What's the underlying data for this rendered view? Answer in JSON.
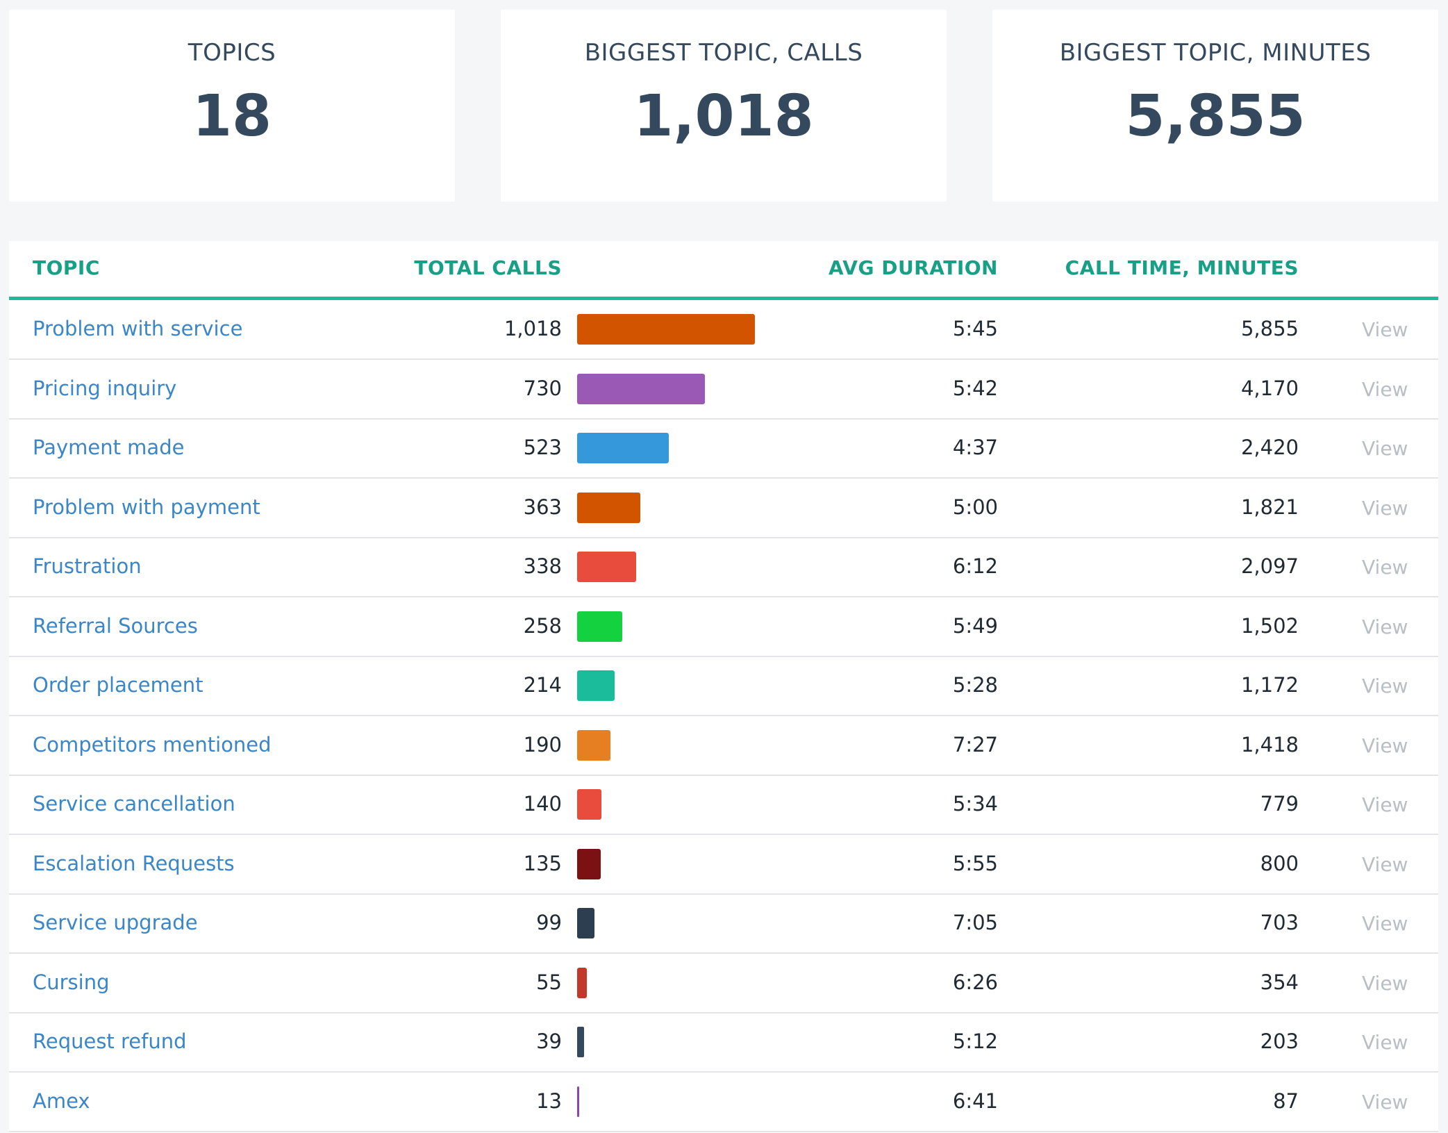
{
  "kpis": [
    {
      "label": "TOPICS",
      "value": "18"
    },
    {
      "label": "BIGGEST TOPIC, CALLS",
      "value": "1,018"
    },
    {
      "label": "BIGGEST TOPIC, MINUTES",
      "value": "5,855"
    }
  ],
  "table": {
    "headers": {
      "topic": "TOPIC",
      "total_calls": "TOTAL CALLS",
      "avg_duration": "AVG DURATION",
      "call_time": "CALL TIME, MINUTES"
    },
    "view_label": "View",
    "max_calls": 1018,
    "rows": [
      {
        "topic": "Problem with service",
        "calls": 1018,
        "calls_text": "1,018",
        "avg": "5:45",
        "minutes": "5,855",
        "color": "#d35400"
      },
      {
        "topic": "Pricing inquiry",
        "calls": 730,
        "calls_text": "730",
        "avg": "5:42",
        "minutes": "4,170",
        "color": "#9b59b6"
      },
      {
        "topic": "Payment made",
        "calls": 523,
        "calls_text": "523",
        "avg": "4:37",
        "minutes": "2,420",
        "color": "#3498db"
      },
      {
        "topic": "Problem with payment",
        "calls": 363,
        "calls_text": "363",
        "avg": "5:00",
        "minutes": "1,821",
        "color": "#d35400"
      },
      {
        "topic": "Frustration",
        "calls": 338,
        "calls_text": "338",
        "avg": "6:12",
        "minutes": "2,097",
        "color": "#e74c3c"
      },
      {
        "topic": "Referral Sources",
        "calls": 258,
        "calls_text": "258",
        "avg": "5:49",
        "minutes": "1,502",
        "color": "#13d13f"
      },
      {
        "topic": "Order placement",
        "calls": 214,
        "calls_text": "214",
        "avg": "5:28",
        "minutes": "1,172",
        "color": "#1abc9c"
      },
      {
        "topic": "Competitors mentioned",
        "calls": 190,
        "calls_text": "190",
        "avg": "7:27",
        "minutes": "1,418",
        "color": "#e67e22"
      },
      {
        "topic": "Service cancellation",
        "calls": 140,
        "calls_text": "140",
        "avg": "5:34",
        "minutes": "779",
        "color": "#e74c3c"
      },
      {
        "topic": "Escalation Requests",
        "calls": 135,
        "calls_text": "135",
        "avg": "5:55",
        "minutes": "800",
        "color": "#7b1113"
      },
      {
        "topic": "Service upgrade",
        "calls": 99,
        "calls_text": "99",
        "avg": "7:05",
        "minutes": "703",
        "color": "#2c3e50"
      },
      {
        "topic": "Cursing",
        "calls": 55,
        "calls_text": "55",
        "avg": "6:26",
        "minutes": "354",
        "color": "#c0392b"
      },
      {
        "topic": "Request refund",
        "calls": 39,
        "calls_text": "39",
        "avg": "5:12",
        "minutes": "203",
        "color": "#34495e"
      },
      {
        "topic": "Amex",
        "calls": 13,
        "calls_text": "13",
        "avg": "6:41",
        "minutes": "87",
        "color": "#8e44ad"
      }
    ]
  }
}
